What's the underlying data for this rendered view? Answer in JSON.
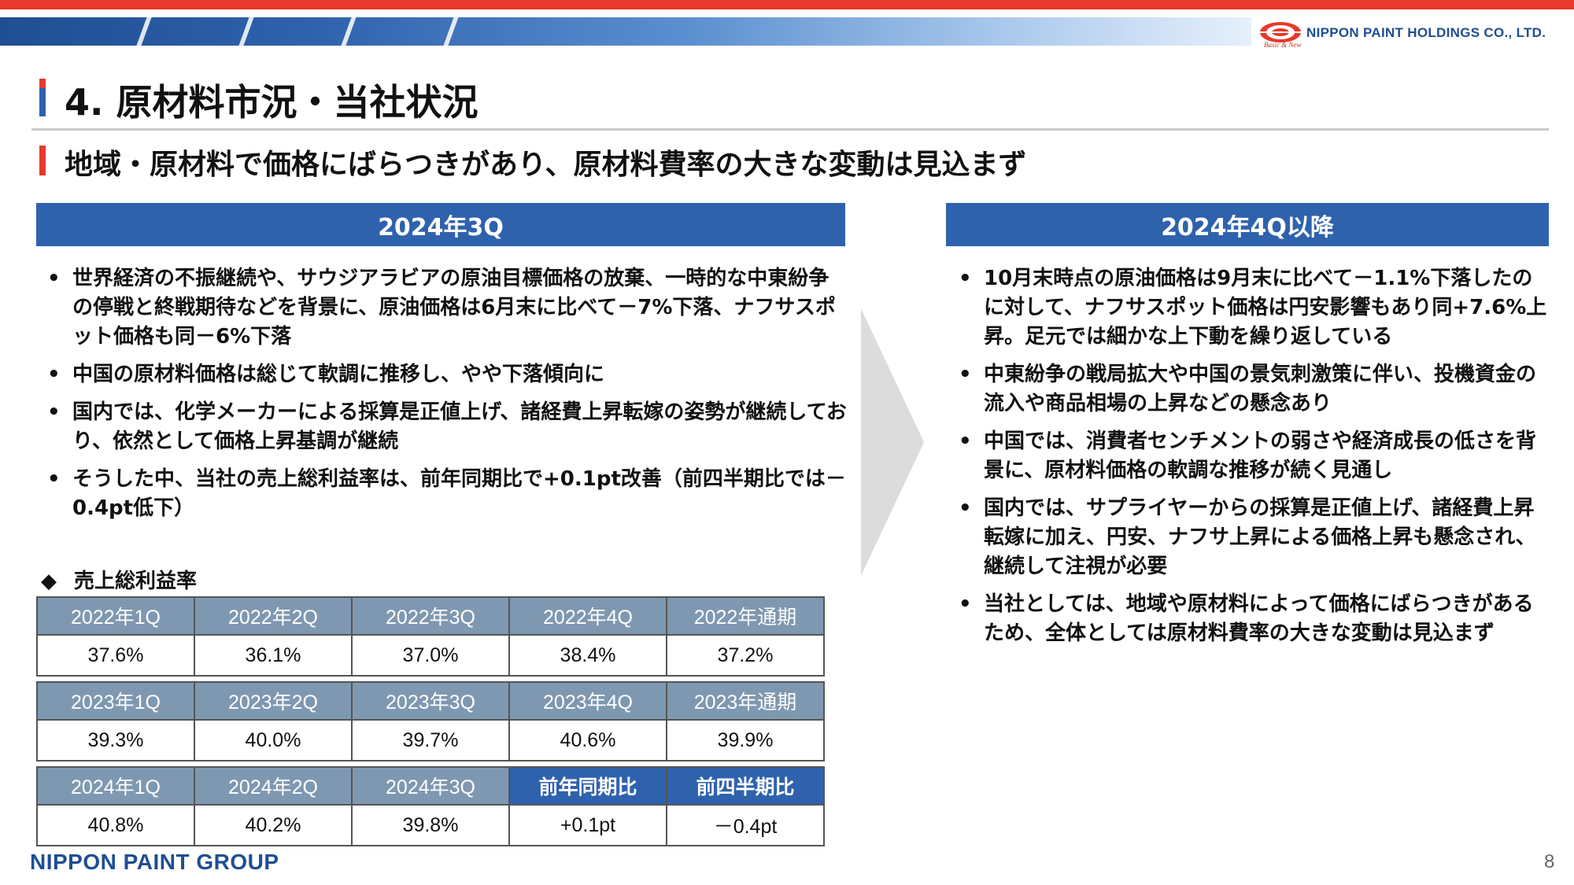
{
  "header": {
    "company": "NIPPON PAINT HOLDINGS CO., LTD.",
    "tagline": "Basic & New",
    "colors": {
      "red": "#e8392a",
      "blue": "#2f62ad",
      "table_header_gray": "#7f98b1"
    }
  },
  "page": {
    "title": "4. 原材料市況・当社状況",
    "subtitle": "地域・原材料で価格にばらつきがあり、原材料費率の大きな変動は見込まず",
    "page_number": "8"
  },
  "left": {
    "header": "2024年3Q",
    "bullet_marker": "•",
    "bullets": [
      "世界経済の不振継続や、サウジアラビアの原油目標価格の放棄、一時的な中東紛争の停戦と終戦期待などを背景に、原油価格は6月末に比べて－7%下落、ナフサスポット価格も同－6%下落",
      "中国の原材料価格は総じて軟調に推移し、やや下落傾向に",
      "国内では、化学メーカーによる採算是正値上げ、諸経費上昇転嫁の姿勢が継続しており、依然として価格上昇基調が継続",
      "そうした中、当社の売上総利益率は、前年同期比で+0.1pt改善（前四半期比では－0.4pt低下）"
    ]
  },
  "right": {
    "header": "2024年4Q以降",
    "bullet_marker": "•",
    "bullets": [
      "10月末時点の原油価格は9月末に比べて－1.1%下落したのに対して、ナフサスポット価格は円安影響もあり同+7.6%上昇。足元では細かな上下動を繰り返している",
      "中東紛争の戦局拡大や中国の景気刺激策に伴い、投機資金の流入や商品相場の上昇などの懸念あり",
      "中国では、消費者センチメントの弱さや経済成長の低さを背景に、原材料価格の軟調な推移が続く見通し",
      "国内では、サプライヤーからの採算是正値上げ、諸経費上昇転嫁に加え、円安、ナフサ上昇による価格上昇も懸念され、継続して注視が必要",
      "当社としては、地域や原材料によって価格にばらつきがあるため、全体としては原材料費率の大きな変動は見込まず"
    ]
  },
  "table": {
    "caption_marker": "◆",
    "caption": "売上総利益率",
    "blocks": [
      {
        "headers": [
          "2022年1Q",
          "2022年2Q",
          "2022年3Q",
          "2022年4Q",
          "2022年通期"
        ],
        "values": [
          "37.6%",
          "36.1%",
          "37.0%",
          "38.4%",
          "37.2%"
        ]
      },
      {
        "headers": [
          "2023年1Q",
          "2023年2Q",
          "2023年3Q",
          "2023年4Q",
          "2023年通期"
        ],
        "values": [
          "39.3%",
          "40.0%",
          "39.7%",
          "40.6%",
          "39.9%"
        ]
      },
      {
        "headers": [
          "2024年1Q",
          "2024年2Q",
          "2024年3Q",
          "前年同期比",
          "前四半期比"
        ],
        "values": [
          "40.8%",
          "40.2%",
          "39.8%",
          "+0.1pt",
          "－0.4pt"
        ]
      }
    ]
  },
  "footer": {
    "group_logo": "NIPPON PAINT GROUP"
  }
}
